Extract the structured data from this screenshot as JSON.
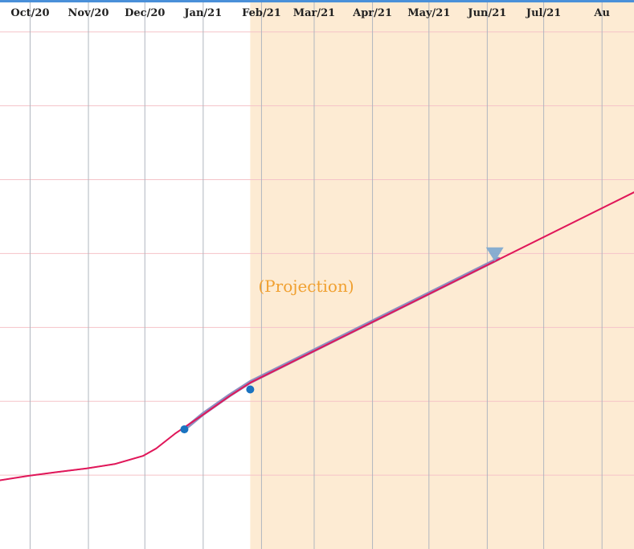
{
  "chart_data": {
    "type": "line",
    "x_axis": {
      "ticks": [
        {
          "label": "Oct/20",
          "date": "2020-10-01"
        },
        {
          "label": "Nov/20",
          "date": "2020-11-01"
        },
        {
          "label": "Dec/20",
          "date": "2020-12-01"
        },
        {
          "label": "Jan/21",
          "date": "2021-01-01"
        },
        {
          "label": "Feb/21",
          "date": "2021-02-01"
        },
        {
          "label": "Mar/21",
          "date": "2021-03-01"
        },
        {
          "label": "Apr/21",
          "date": "2021-04-01"
        },
        {
          "label": "May/21",
          "date": "2021-05-01"
        },
        {
          "label": "Jun/21",
          "date": "2021-06-01"
        },
        {
          "label": "Jul/21",
          "date": "2021-07-01"
        },
        {
          "label": "Au",
          "date": "2021-08-01"
        }
      ],
      "range": [
        "2020-09-15",
        "2021-08-18"
      ],
      "label_position": "top"
    },
    "y_axis": {
      "ticks_labeled": false,
      "gridline_values": [
        1,
        2,
        3,
        4,
        5,
        6,
        7
      ],
      "range": [
        0,
        7.4
      ]
    },
    "grid": {
      "vertical": true,
      "horizontal": true
    },
    "projection_region": {
      "start": "2021-01-26",
      "end": "2021-08-18",
      "label": "(Projection)",
      "color": "#fdebd3",
      "label_color": "#f0a030"
    },
    "series": [
      {
        "color": "#e0185a",
        "points": [
          {
            "x": "2020-09-15",
            "y": 0.93
          },
          {
            "x": "2020-09-30",
            "y": 0.99
          },
          {
            "x": "2020-10-15",
            "y": 1.04
          },
          {
            "x": "2020-10-31",
            "y": 1.09
          },
          {
            "x": "2020-11-15",
            "y": 1.15
          },
          {
            "x": "2020-11-30",
            "y": 1.26
          },
          {
            "x": "2020-12-07",
            "y": 1.36
          },
          {
            "x": "2020-12-17",
            "y": 1.56
          },
          {
            "x": "2021-01-01",
            "y": 1.82
          },
          {
            "x": "2021-01-15",
            "y": 2.07
          },
          {
            "x": "2021-01-26",
            "y": 2.25
          },
          {
            "x": "2021-08-18",
            "y": 4.83
          }
        ]
      },
      {
        "color": "#8e8ec0",
        "points": [
          {
            "x": "2020-12-22",
            "y": 1.62
          },
          {
            "x": "2021-01-01",
            "y": 1.83
          },
          {
            "x": "2021-01-15",
            "y": 2.08
          },
          {
            "x": "2021-01-26",
            "y": 2.26
          },
          {
            "x": "2021-06-07",
            "y": 3.93
          }
        ]
      }
    ],
    "markers": [
      {
        "shape": "circle",
        "x": "2020-12-22",
        "y": 1.62,
        "color": "#1a73c0"
      },
      {
        "shape": "circle",
        "x": "2021-01-26",
        "y": 2.16,
        "color": "#1a73c0"
      },
      {
        "shape": "triangle-down",
        "x": "2021-06-05",
        "y": 4.0,
        "color": "#7ba7cf"
      }
    ],
    "colors": {
      "top_border": "#4a90d9",
      "vertical_grid": "#b0b6bf",
      "horizontal_grid": "#f5c3c8"
    }
  }
}
